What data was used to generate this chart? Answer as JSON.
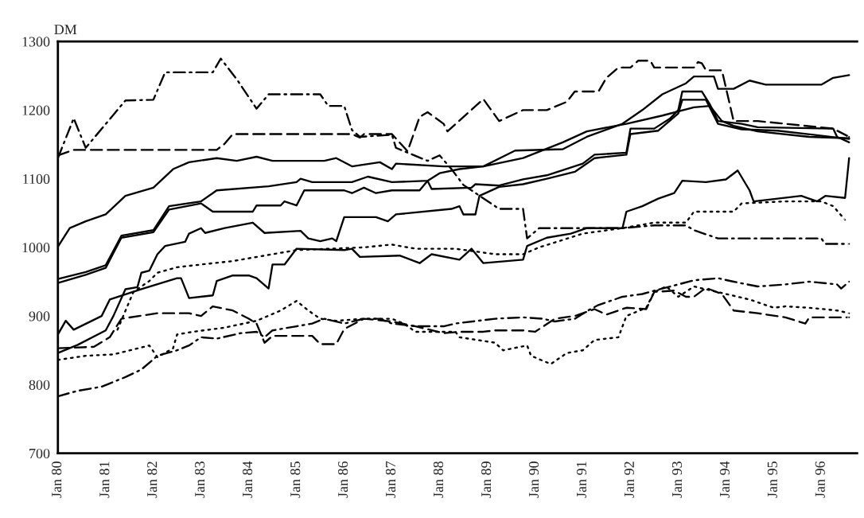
{
  "chart_data": {
    "type": "line",
    "ylabel": "DM",
    "xlim": [
      "1980-01",
      "1996-10"
    ],
    "ylim": [
      700,
      1300
    ],
    "xticks": [
      {
        "value": "1980-01",
        "label": "Jan 80"
      },
      {
        "value": "1981-01",
        "label": "Jan 81"
      },
      {
        "value": "1982-01",
        "label": "Jan 82"
      },
      {
        "value": "1983-01",
        "label": "Jan 83"
      },
      {
        "value": "1984-01",
        "label": "Jan 84"
      },
      {
        "value": "1985-01",
        "label": "Jan 85"
      },
      {
        "value": "1986-01",
        "label": "Jan 86"
      },
      {
        "value": "1987-01",
        "label": "Jan 87"
      },
      {
        "value": "1988-01",
        "label": "Jan 88"
      },
      {
        "value": "1989-01",
        "label": "Jan 89"
      },
      {
        "value": "1990-01",
        "label": "Jan 90"
      },
      {
        "value": "1991-01",
        "label": "Jan 91"
      },
      {
        "value": "1992-01",
        "label": "Jan 92"
      },
      {
        "value": "1993-01",
        "label": "Jan 93"
      },
      {
        "value": "1994-01",
        "label": "Jan 94"
      },
      {
        "value": "1995-01",
        "label": "Jan 95"
      },
      {
        "value": "1996-01",
        "label": "Jan 96"
      }
    ],
    "yticks": [
      700,
      800,
      900,
      1000,
      1100,
      1200,
      1300
    ],
    "grid": false,
    "series": [
      {
        "color": "#000000",
        "line_style": "dashdot",
        "x": [
          "1980-01",
          "1980-05",
          "1980-08",
          "1981-06",
          "1982-01",
          "1982-04",
          "1983-04",
          "1983-06",
          "1983-10",
          "1984-03",
          "1984-06",
          "1985-07",
          "1985-09",
          "1986-01",
          "1986-03",
          "1986-05",
          "1987-01",
          "1987-02",
          "1987-10",
          "1988-01",
          "1988-04",
          "1988-07",
          "1989-04",
          "1989-10",
          "1989-11",
          "1990-02",
          "1991-11",
          "1992-07",
          "1993-03",
          "1993-05",
          "1993-11",
          "1996-01",
          "1996-02",
          "1996-08"
        ],
        "values": [
          1130,
          1188,
          1145,
          1214,
          1215,
          1255,
          1255,
          1275,
          1245,
          1202,
          1223,
          1223,
          1206,
          1206,
          1171,
          1161,
          1164,
          1145,
          1126,
          1134,
          1114,
          1091,
          1056,
          1056,
          1013,
          1028,
          1028,
          1032,
          1032,
          1025,
          1013,
          1013,
          1005,
          1005
        ]
      },
      {
        "color": "#000000",
        "line_style": "dashed",
        "x": [
          "1980-01",
          "1980-05",
          "1983-05",
          "1983-07",
          "1983-09",
          "1986-03",
          "1986-05",
          "1986-06",
          "1987-01",
          "1987-05",
          "1987-08",
          "1987-10",
          "1988-02",
          "1988-03",
          "1988-12",
          "1989-04",
          "1989-10",
          "1990-04",
          "1990-09",
          "1990-11",
          "1991-05",
          "1991-07",
          "1991-10",
          "1992-01",
          "1992-03",
          "1992-06",
          "1992-07",
          "1993-05",
          "1993-06",
          "1993-07",
          "1993-08",
          "1993-12",
          "1994-03",
          "1994-09",
          "1996-04",
          "1996-08"
        ],
        "values": [
          1134,
          1142,
          1142,
          1151,
          1165,
          1165,
          1160,
          1165,
          1165,
          1140,
          1190,
          1197,
          1180,
          1169,
          1216,
          1184,
          1200,
          1200,
          1212,
          1227,
          1227,
          1247,
          1262,
          1262,
          1272,
          1272,
          1262,
          1262,
          1270,
          1268,
          1258,
          1258,
          1184,
          1184,
          1173,
          1161
        ]
      },
      {
        "color": "#000000",
        "line_style": "solid",
        "x": [
          "1980-01",
          "1980-04",
          "1980-08",
          "1981-01",
          "1981-06",
          "1982-01",
          "1982-06",
          "1982-10",
          "1983-05",
          "1983-10",
          "1984-03",
          "1984-07",
          "1985-08",
          "1985-11",
          "1986-03",
          "1986-10",
          "1987-01",
          "1987-02",
          "1988-02",
          "1988-12",
          "1989-10",
          "1990-08",
          "1991-02",
          "1991-12",
          "1992-09",
          "1993-05",
          "1993-09",
          "1993-12",
          "1994-03",
          "1994-09",
          "1995-10",
          "1996-08"
        ],
        "values": [
          1001,
          1028,
          1038,
          1048,
          1075,
          1087,
          1114,
          1124,
          1130,
          1126,
          1132,
          1126,
          1126,
          1130,
          1118,
          1124,
          1114,
          1122,
          1118,
          1118,
          1130,
          1153,
          1169,
          1180,
          1192,
          1204,
          1206,
          1184,
          1177,
          1169,
          1161,
          1159
        ]
      },
      {
        "color": "#000000",
        "line_style": "solid",
        "x": [
          "1980-01",
          "1980-08",
          "1981-01",
          "1981-05",
          "1982-01",
          "1982-05",
          "1983-01",
          "1983-05",
          "1984-06",
          "1985-01",
          "1985-02",
          "1985-05",
          "1986-03",
          "1986-07",
          "1987-01",
          "1987-10",
          "1988-01",
          "1988-06",
          "1988-12",
          "1989-08",
          "1990-08",
          "1991-02",
          "1991-11",
          "1992-04",
          "1992-09",
          "1993-03",
          "1993-05",
          "1993-10",
          "1993-11",
          "1994-03",
          "1994-07",
          "1994-11",
          "1996-01",
          "1996-04",
          "1996-08"
        ],
        "values": [
          954,
          964,
          974,
          1017,
          1025,
          1060,
          1067,
          1083,
          1089,
          1095,
          1100,
          1095,
          1095,
          1103,
          1095,
          1097,
          1108,
          1114,
          1118,
          1141,
          1143,
          1161,
          1180,
          1200,
          1223,
          1239,
          1249,
          1249,
          1231,
          1231,
          1243,
          1237,
          1237,
          1247,
          1251
        ]
      },
      {
        "color": "#000000",
        "line_style": "solid",
        "x": [
          "1980-01",
          "1980-08",
          "1981-01",
          "1981-05",
          "1982-01",
          "1982-05",
          "1983-01",
          "1983-04",
          "1984-02",
          "1984-03",
          "1984-09",
          "1984-10",
          "1985-01",
          "1985-03",
          "1986-01",
          "1986-03",
          "1986-06",
          "1986-09",
          "1987-01",
          "1987-08",
          "1987-10",
          "1987-11",
          "1988-09",
          "1988-10",
          "1989-04",
          "1989-10",
          "1990-04",
          "1991-01",
          "1991-04",
          "1991-12",
          "1992-01",
          "1992-07",
          "1992-11",
          "1993-01",
          "1993-02",
          "1993-07",
          "1993-09",
          "1993-11",
          "1994-05",
          "1994-09",
          "1996-04",
          "1996-05",
          "1996-08"
        ],
        "values": [
          948,
          960,
          970,
          1014,
          1022,
          1055,
          1064,
          1052,
          1052,
          1061,
          1061,
          1067,
          1061,
          1083,
          1083,
          1079,
          1087,
          1079,
          1083,
          1083,
          1097,
          1085,
          1087,
          1092,
          1090,
          1099,
          1105,
          1122,
          1135,
          1138,
          1173,
          1173,
          1188,
          1200,
          1227,
          1227,
          1208,
          1184,
          1180,
          1175,
          1173,
          1161,
          1153
        ]
      },
      {
        "color": "#000000",
        "line_style": "solid",
        "x": [
          "1980-01",
          "1980-06",
          "1981-01",
          "1981-03",
          "1981-06",
          "1981-09",
          "1981-10",
          "1981-12",
          "1982-02",
          "1982-04",
          "1982-09",
          "1982-10",
          "1983-01",
          "1983-02",
          "1983-07",
          "1984-02",
          "1984-05",
          "1985-02",
          "1985-04",
          "1985-07",
          "1985-10",
          "1985-11",
          "1986-01",
          "1986-09",
          "1986-12",
          "1987-02",
          "1988-04",
          "1988-06",
          "1988-07",
          "1988-10",
          "1988-11",
          "1989-04",
          "1989-10",
          "1990-04",
          "1990-11",
          "1991-04",
          "1991-12",
          "1992-01",
          "1992-08",
          "1993-01",
          "1993-02",
          "1993-08",
          "1993-11",
          "1994-05",
          "1995-02",
          "1996-08"
        ],
        "values": [
          846,
          858,
          879,
          900,
          939,
          942,
          963,
          966,
          990,
          1002,
          1008,
          1020,
          1028,
          1021,
          1028,
          1036,
          1021,
          1024,
          1013,
          1009,
          1013,
          1009,
          1044,
          1044,
          1038,
          1048,
          1056,
          1060,
          1048,
          1048,
          1075,
          1088,
          1092,
          1100,
          1110,
          1130,
          1135,
          1165,
          1170,
          1195,
          1215,
          1215,
          1180,
          1172,
          1170,
          1158
        ]
      },
      {
        "color": "#000000",
        "line_style": "solid",
        "x": [
          "1980-01",
          "1980-03",
          "1980-05",
          "1980-12",
          "1981-02",
          "1981-10",
          "1982-07",
          "1982-08",
          "1982-10",
          "1983-04",
          "1983-05",
          "1983-09",
          "1984-01",
          "1984-03",
          "1984-06",
          "1984-07",
          "1984-10",
          "1985-01",
          "1986-01",
          "1986-03",
          "1986-05",
          "1987-03",
          "1987-08",
          "1987-11",
          "1988-06",
          "1988-09",
          "1988-12",
          "1989-10",
          "1989-11",
          "1990-04",
          "1990-10",
          "1991-02",
          "1991-11",
          "1991-12",
          "1992-04",
          "1992-08",
          "1992-12",
          "1993-02",
          "1993-08",
          "1994-01",
          "1994-04",
          "1994-07",
          "1994-08",
          "1995-02",
          "1995-08",
          "1995-12",
          "1996-02",
          "1996-07",
          "1996-08"
        ],
        "values": [
          873,
          893,
          880,
          900,
          924,
          939,
          955,
          955,
          926,
          930,
          951,
          959,
          959,
          955,
          940,
          975,
          975,
          998,
          996,
          998,
          986,
          988,
          977,
          990,
          982,
          998,
          977,
          982,
          1002,
          1014,
          1020,
          1028,
          1028,
          1052,
          1060,
          1071,
          1079,
          1097,
          1095,
          1099,
          1112,
          1083,
          1067,
          1071,
          1075,
          1067,
          1075,
          1072,
          1130
        ]
      },
      {
        "color": "#000000",
        "line_style": "dotted",
        "x": [
          "1981-04",
          "1981-08",
          "1981-12",
          "1982-02",
          "1982-07",
          "1983-01",
          "1983-09",
          "1984-01",
          "1984-07",
          "1985-01",
          "1986-06",
          "1987-01",
          "1987-07",
          "1988-05",
          "1989-03",
          "1989-10",
          "1990-02",
          "1991-01",
          "1991-11",
          "1992-07",
          "1993-03",
          "1993-05",
          "1994-03",
          "1994-05",
          "1995-04",
          "1996-01",
          "1996-04",
          "1996-07"
        ],
        "values": [
          880,
          935,
          951,
          963,
          971,
          975,
          980,
          984,
          990,
          996,
          1000,
          1004,
          998,
          998,
          990,
          990,
          1000,
          1020,
          1028,
          1036,
          1036,
          1052,
          1052,
          1064,
          1067,
          1067,
          1060,
          1040
        ]
      },
      {
        "color": "#000000",
        "line_style": "dashdot",
        "x": [
          "1980-01",
          "1980-06",
          "1980-12",
          "1981-06",
          "1981-10",
          "1982-02",
          "1982-07",
          "1982-10",
          "1983-01",
          "1983-05",
          "1983-11",
          "1984-03",
          "1984-05",
          "1984-07",
          "1985-01",
          "1985-05",
          "1985-08",
          "1986-01",
          "1986-06",
          "1986-10",
          "1987-01",
          "1987-07",
          "1988-02",
          "1988-05",
          "1989-03",
          "1989-10",
          "1990-03",
          "1990-06",
          "1990-11",
          "1991-02",
          "1991-05",
          "1991-11",
          "1992-04",
          "1992-09",
          "1993-01",
          "1993-05",
          "1993-11",
          "1994-03",
          "1994-09",
          "1995-04",
          "1995-10",
          "1996-05",
          "1996-06",
          "1996-08"
        ],
        "values": [
          783,
          791,
          797,
          811,
          822,
          842,
          850,
          857,
          869,
          867,
          875,
          877,
          869,
          879,
          885,
          889,
          896,
          889,
          896,
          896,
          889,
          885,
          885,
          889,
          896,
          898,
          896,
          892,
          896,
          907,
          916,
          928,
          932,
          940,
          946,
          952,
          955,
          950,
          943,
          946,
          950,
          946,
          940,
          950
        ]
      },
      {
        "color": "#000000",
        "line_style": "dashed",
        "x": [
          "1980-01",
          "1980-10",
          "1981-02",
          "1981-05",
          "1982-02",
          "1982-10",
          "1983-01",
          "1983-04",
          "1983-09",
          "1984-01",
          "1984-03",
          "1984-05",
          "1984-07",
          "1985-05",
          "1985-07",
          "1985-11",
          "1986-01",
          "1986-06",
          "1987-01",
          "1987-07",
          "1988-02",
          "1988-06",
          "1988-12",
          "1989-03",
          "1989-10",
          "1990-01",
          "1990-06",
          "1990-11",
          "1991-04",
          "1991-07",
          "1991-12",
          "1992-05",
          "1992-07",
          "1992-12",
          "1993-03",
          "1993-05",
          "1993-08",
          "1993-12",
          "1994-03",
          "1994-09",
          "1995-04",
          "1995-09",
          "1995-10",
          "1996-08"
        ],
        "values": [
          853,
          855,
          869,
          896,
          904,
          904,
          900,
          914,
          908,
          896,
          889,
          861,
          871,
          871,
          859,
          859,
          881,
          896,
          892,
          885,
          875,
          877,
          877,
          879,
          879,
          877,
          896,
          900,
          910,
          902,
          912,
          910,
          935,
          937,
          928,
          928,
          941,
          932,
          908,
          904,
          898,
          889,
          898,
          898
        ]
      },
      {
        "color": "#000000",
        "line_style": "dotted",
        "x": [
          "1980-01",
          "1980-08",
          "1981-03",
          "1981-12",
          "1982-02",
          "1982-06",
          "1982-07",
          "1982-11",
          "1983-07",
          "1984-03",
          "1984-09",
          "1985-01",
          "1985-04",
          "1985-07",
          "1985-11",
          "1986-06",
          "1987-01",
          "1987-04",
          "1987-07",
          "1988-05",
          "1988-06",
          "1989-03",
          "1989-05",
          "1989-11",
          "1989-12",
          "1990-05",
          "1990-09",
          "1991-01",
          "1991-04",
          "1991-10",
          "1991-12",
          "1992-05",
          "1992-07",
          "1992-10",
          "1993-01",
          "1993-05",
          "1994-07",
          "1995-01",
          "1995-04",
          "1995-10",
          "1996-05",
          "1996-08"
        ],
        "values": [
          836,
          842,
          844,
          857,
          840,
          853,
          873,
          877,
          883,
          893,
          908,
          922,
          908,
          896,
          893,
          896,
          896,
          889,
          877,
          877,
          869,
          861,
          850,
          857,
          842,
          830,
          846,
          850,
          865,
          869,
          900,
          912,
          935,
          943,
          928,
          943,
          924,
          912,
          914,
          912,
          908,
          904
        ]
      }
    ]
  }
}
